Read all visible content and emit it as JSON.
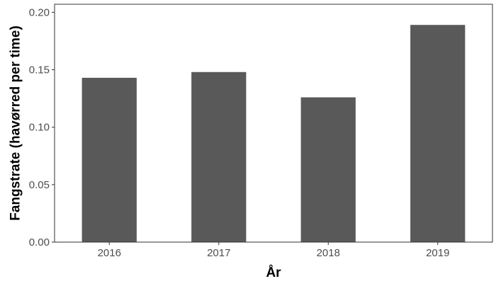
{
  "chart_data": {
    "type": "bar",
    "categories": [
      "2016",
      "2017",
      "2018",
      "2019"
    ],
    "values": [
      0.143,
      0.148,
      0.126,
      0.189
    ],
    "title": "",
    "xlabel": "År",
    "ylabel": "Fangstrate (havørred per time)",
    "ylim": [
      0,
      0.207
    ],
    "yticks": [
      0.0,
      0.05,
      0.1,
      0.15,
      0.2
    ],
    "ytick_labels": [
      "0.00",
      "0.05",
      "0.10",
      "0.15",
      "0.20"
    ],
    "grid": false,
    "legend": "none",
    "bar_color": "#595959"
  }
}
